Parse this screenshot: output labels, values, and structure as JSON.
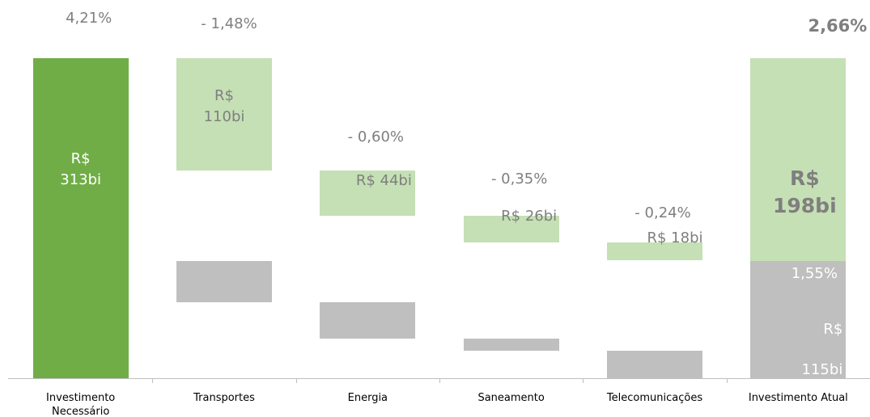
{
  "chart_data": {
    "type": "waterfall",
    "categories": [
      "Investimento Necessário",
      "Transportes",
      "Energia",
      "Saneamento",
      "Telecomunicações",
      "Investimento Atual"
    ],
    "percent_labels": [
      "4,21%",
      "- 1,48%",
      "- 0,60%",
      "- 0,35%",
      "- 0,24%",
      "2,66%"
    ],
    "series": [
      {
        "color": "#70ad47",
        "values": [
          313,
          null,
          null,
          null,
          null,
          null
        ],
        "value_labels": [
          "R$ 313bi",
          null,
          null,
          null,
          null,
          null
        ]
      },
      {
        "color": "#c5e0b4",
        "values": [
          null,
          110,
          44,
          26,
          18,
          198
        ],
        "value_labels": [
          null,
          "R$ 110bi",
          "R$ 44bi",
          "R$ 26bi",
          "R$ 18bi",
          "R$ 198bi"
        ]
      },
      {
        "color": "#bfbfbf",
        "values": [
          null,
          41,
          35,
          12,
          27,
          115
        ],
        "value_labels": [
          null,
          null,
          null,
          null,
          null,
          "R$ 115bi"
        ],
        "percent_labels": [
          null,
          null,
          null,
          null,
          null,
          "1,55%"
        ]
      }
    ]
  }
}
